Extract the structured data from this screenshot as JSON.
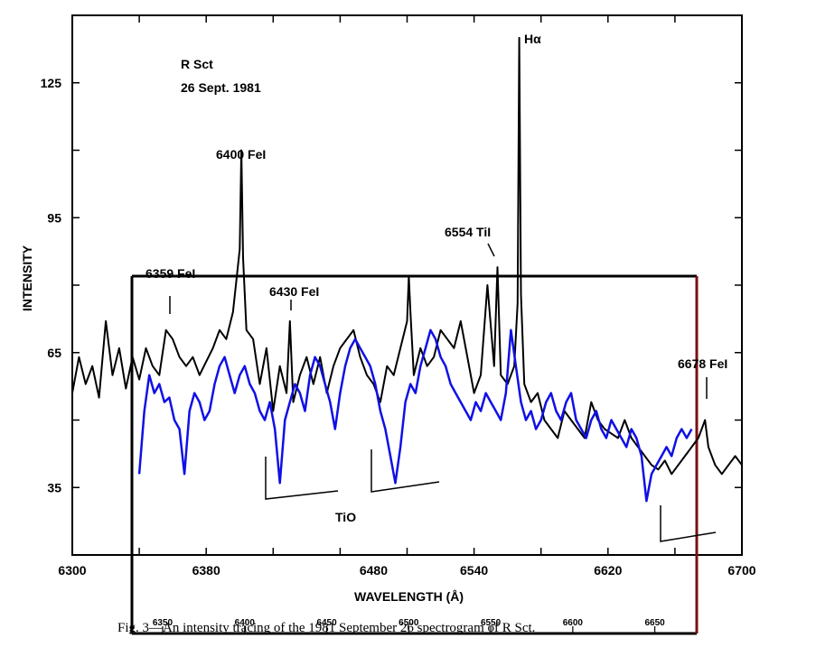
{
  "chart_data": {
    "type": "line",
    "title_lines": [
      "R Sct",
      "26 Sept. 1981"
    ],
    "xlabel": "WAVELENGTH (Å)",
    "ylabel": "INTENSITY",
    "xlim": [
      6300,
      6700
    ],
    "ylim": [
      20,
      140
    ],
    "xticks": [
      6300,
      6380,
      6480,
      6540,
      6620,
      6700
    ],
    "yticks": [
      35,
      65,
      95,
      125
    ],
    "overlay_xticks": [
      "6350",
      "6400",
      "6450",
      "6500",
      "6550",
      "6600",
      "6650"
    ],
    "colors": {
      "black_trace": "#000000",
      "blue_trace": "#1010e6",
      "axis": "#000000",
      "overlay_right": "#7a1010"
    },
    "series": [
      {
        "color": "#000000",
        "x": [
          6300,
          6304,
          6308,
          6312,
          6316,
          6320,
          6324,
          6328,
          6332,
          6336,
          6340,
          6344,
          6348,
          6352,
          6356,
          6360,
          6364,
          6368,
          6372,
          6376,
          6380,
          6384,
          6388,
          6392,
          6396,
          6400,
          6401,
          6402,
          6404,
          6408,
          6412,
          6416,
          6420,
          6424,
          6428,
          6430,
          6432,
          6436,
          6440,
          6444,
          6448,
          6452,
          6456,
          6460,
          6464,
          6468,
          6472,
          6476,
          6480,
          6484,
          6488,
          6492,
          6496,
          6500,
          6501,
          6502,
          6504,
          6508,
          6512,
          6516,
          6520,
          6524,
          6528,
          6532,
          6536,
          6540,
          6544,
          6548,
          6552,
          6554,
          6556,
          6560,
          6564,
          6566,
          6567,
          6568,
          6570,
          6574,
          6578,
          6582,
          6586,
          6590,
          6594,
          6598,
          6602,
          6606,
          6610,
          6614,
          6618,
          6622,
          6626,
          6630,
          6634,
          6638,
          6642,
          6646,
          6650,
          6654,
          6658,
          6662,
          6666,
          6670,
          6674,
          6676,
          6678,
          6680,
          6684,
          6688,
          6692,
          6696,
          6700
        ],
        "y": [
          56,
          64,
          58,
          62,
          55,
          72,
          60,
          66,
          57,
          64,
          59,
          66,
          62,
          60,
          70,
          68,
          64,
          62,
          64,
          60,
          63,
          66,
          70,
          68,
          74,
          88,
          110,
          86,
          70,
          68,
          58,
          66,
          52,
          62,
          56,
          72,
          54,
          60,
          64,
          58,
          64,
          56,
          62,
          66,
          68,
          70,
          64,
          60,
          58,
          54,
          62,
          60,
          66,
          72,
          82,
          74,
          60,
          66,
          62,
          64,
          70,
          68,
          66,
          72,
          64,
          56,
          60,
          80,
          62,
          84,
          60,
          58,
          62,
          76,
          135,
          78,
          58,
          54,
          56,
          50,
          48,
          46,
          52,
          50,
          48,
          46,
          54,
          50,
          48,
          47,
          46,
          50,
          46,
          44,
          42,
          40,
          39,
          41,
          38,
          40,
          42,
          44,
          46,
          48,
          50,
          44,
          40,
          38,
          40,
          42,
          40
        ]
      },
      {
        "color": "#1010e6",
        "x": [
          6340,
          6343,
          6346,
          6349,
          6352,
          6355,
          6358,
          6361,
          6364,
          6367,
          6370,
          6373,
          6376,
          6379,
          6382,
          6385,
          6388,
          6391,
          6394,
          6397,
          6400,
          6403,
          6406,
          6409,
          6412,
          6415,
          6418,
          6421,
          6424,
          6427,
          6430,
          6433,
          6436,
          6439,
          6442,
          6445,
          6448,
          6451,
          6454,
          6457,
          6460,
          6463,
          6466,
          6469,
          6472,
          6475,
          6478,
          6481,
          6484,
          6487,
          6490,
          6493,
          6496,
          6499,
          6502,
          6505,
          6508,
          6511,
          6514,
          6517,
          6520,
          6523,
          6526,
          6529,
          6532,
          6535,
          6538,
          6541,
          6544,
          6547,
          6550,
          6553,
          6556,
          6559,
          6562,
          6565,
          6568,
          6571,
          6574,
          6577,
          6580,
          6583,
          6586,
          6589,
          6592,
          6595,
          6598,
          6601,
          6604,
          6607,
          6610,
          6613,
          6616,
          6619,
          6622,
          6625,
          6628,
          6631,
          6634,
          6637,
          6640,
          6643,
          6646,
          6649,
          6652,
          6655,
          6658,
          6661,
          6664,
          6667,
          6670
        ],
        "y": [
          38,
          52,
          60,
          56,
          58,
          54,
          55,
          50,
          48,
          38,
          52,
          56,
          54,
          50,
          52,
          58,
          62,
          64,
          60,
          56,
          60,
          62,
          58,
          56,
          52,
          50,
          54,
          48,
          36,
          50,
          54,
          58,
          56,
          52,
          60,
          64,
          62,
          58,
          54,
          48,
          56,
          62,
          66,
          68,
          66,
          64,
          62,
          58,
          52,
          48,
          42,
          36,
          44,
          54,
          58,
          56,
          62,
          66,
          70,
          68,
          64,
          62,
          58,
          56,
          54,
          52,
          50,
          54,
          52,
          56,
          54,
          52,
          50,
          56,
          70,
          62,
          54,
          50,
          52,
          48,
          50,
          54,
          56,
          52,
          50,
          54,
          56,
          50,
          48,
          46,
          50,
          52,
          48,
          46,
          50,
          48,
          46,
          44,
          48,
          46,
          42,
          32,
          38,
          40,
          42,
          44,
          42,
          46,
          48,
          46,
          48
        ]
      }
    ],
    "annotations": [
      {
        "text": "6400 FeI",
        "x": 6400,
        "y": 112
      },
      {
        "text": "6359 FeI",
        "x": 6359,
        "y": 82
      },
      {
        "text": "6430 FeI",
        "x": 6430,
        "y": 78
      },
      {
        "text": "6554 TiI",
        "x": 6554,
        "y": 92
      },
      {
        "text": "Hα",
        "x": 6567,
        "y": 137
      },
      {
        "text": "6678 FeI",
        "x": 6678,
        "y": 61
      },
      {
        "text": "TiO",
        "x": 6460,
        "y": 30
      }
    ]
  },
  "caption": "Fig. 3—An intensity tracing of the 1981 September 26 spectrogram of R Sct."
}
